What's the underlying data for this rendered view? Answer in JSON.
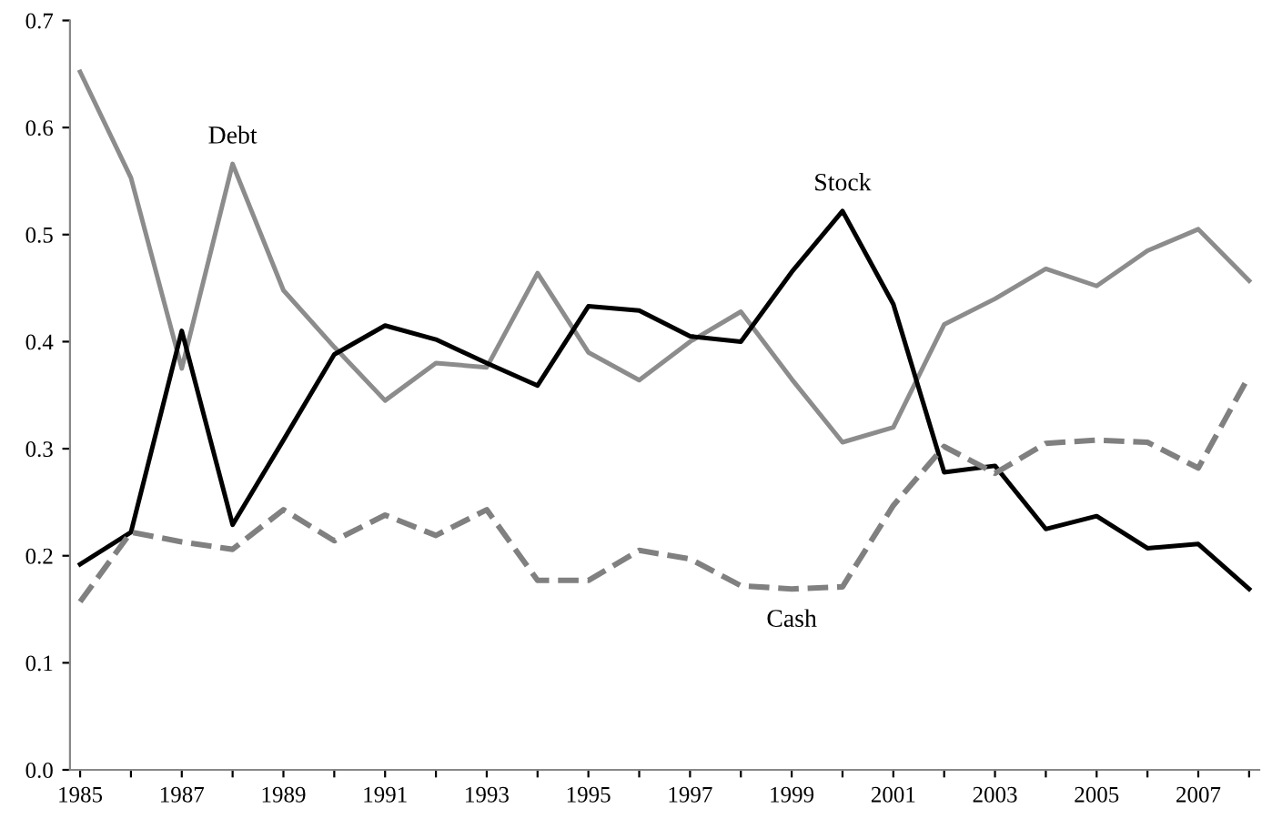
{
  "chart_data": {
    "type": "line",
    "x": [
      1985,
      1986,
      1987,
      1988,
      1989,
      1990,
      1991,
      1992,
      1993,
      1994,
      1995,
      1996,
      1997,
      1998,
      1999,
      2000,
      2001,
      2002,
      2003,
      2004,
      2005,
      2006,
      2007,
      2008
    ],
    "series": [
      {
        "color": "#8c8c8c",
        "line_style": "solid",
        "values": [
          0.652,
          0.553,
          0.375,
          0.566,
          0.448,
          0.395,
          0.345,
          0.38,
          0.376,
          0.464,
          0.39,
          0.364,
          0.4,
          0.428,
          0.365,
          0.306,
          0.32,
          0.416,
          0.44,
          0.468,
          0.452,
          0.485,
          0.505,
          0.457
        ]
      },
      {
        "color": "#000000",
        "line_style": "solid",
        "values": [
          0.192,
          0.222,
          0.41,
          0.229,
          0.308,
          0.388,
          0.415,
          0.402,
          0.38,
          0.359,
          0.433,
          0.429,
          0.405,
          0.4,
          0.465,
          0.522,
          0.435,
          0.278,
          0.284,
          0.225,
          0.237,
          0.207,
          0.211,
          0.169
        ]
      },
      {
        "color": "#808080",
        "line_style": "dashed",
        "values": [
          0.157,
          0.222,
          0.213,
          0.206,
          0.243,
          0.214,
          0.238,
          0.219,
          0.243,
          0.177,
          0.177,
          0.205,
          0.197,
          0.172,
          0.169,
          0.171,
          0.247,
          0.302,
          0.277,
          0.305,
          0.308,
          0.306,
          0.282,
          0.368
        ]
      }
    ],
    "annotations": [
      {
        "text": "Debt",
        "x": 1988,
        "y": 0.566
      },
      {
        "text": "Stock",
        "x": 2000,
        "y": 0.522
      },
      {
        "text": "Cash",
        "x": 1999,
        "y": 0.169
      }
    ],
    "xlim": [
      1984.8,
      2008.2
    ],
    "ylim": [
      0,
      0.7
    ],
    "xticks": [
      1985,
      {
        "value": 1986,
        "label": null
      },
      1987,
      {
        "value": 1988,
        "label": null
      },
      1989,
      {
        "value": 1990,
        "label": null
      },
      1991,
      {
        "value": 1992,
        "label": null
      },
      1993,
      {
        "value": 1994,
        "label": null
      },
      1995,
      {
        "value": 1996,
        "label": null
      },
      1997,
      {
        "value": 1998,
        "label": null
      },
      1999,
      {
        "value": 2000,
        "label": null
      },
      2001,
      {
        "value": 2002,
        "label": null
      },
      2003,
      {
        "value": 2004,
        "label": null
      },
      2005,
      {
        "value": 2006,
        "label": null
      },
      2007,
      {
        "value": 2008,
        "label": null
      }
    ],
    "yticks": [
      {
        "value": 0,
        "label": "0.0"
      },
      0.1,
      0.2,
      0.3,
      0.4,
      0.5,
      0.6,
      0.7
    ],
    "grid": false,
    "marker": "none"
  }
}
